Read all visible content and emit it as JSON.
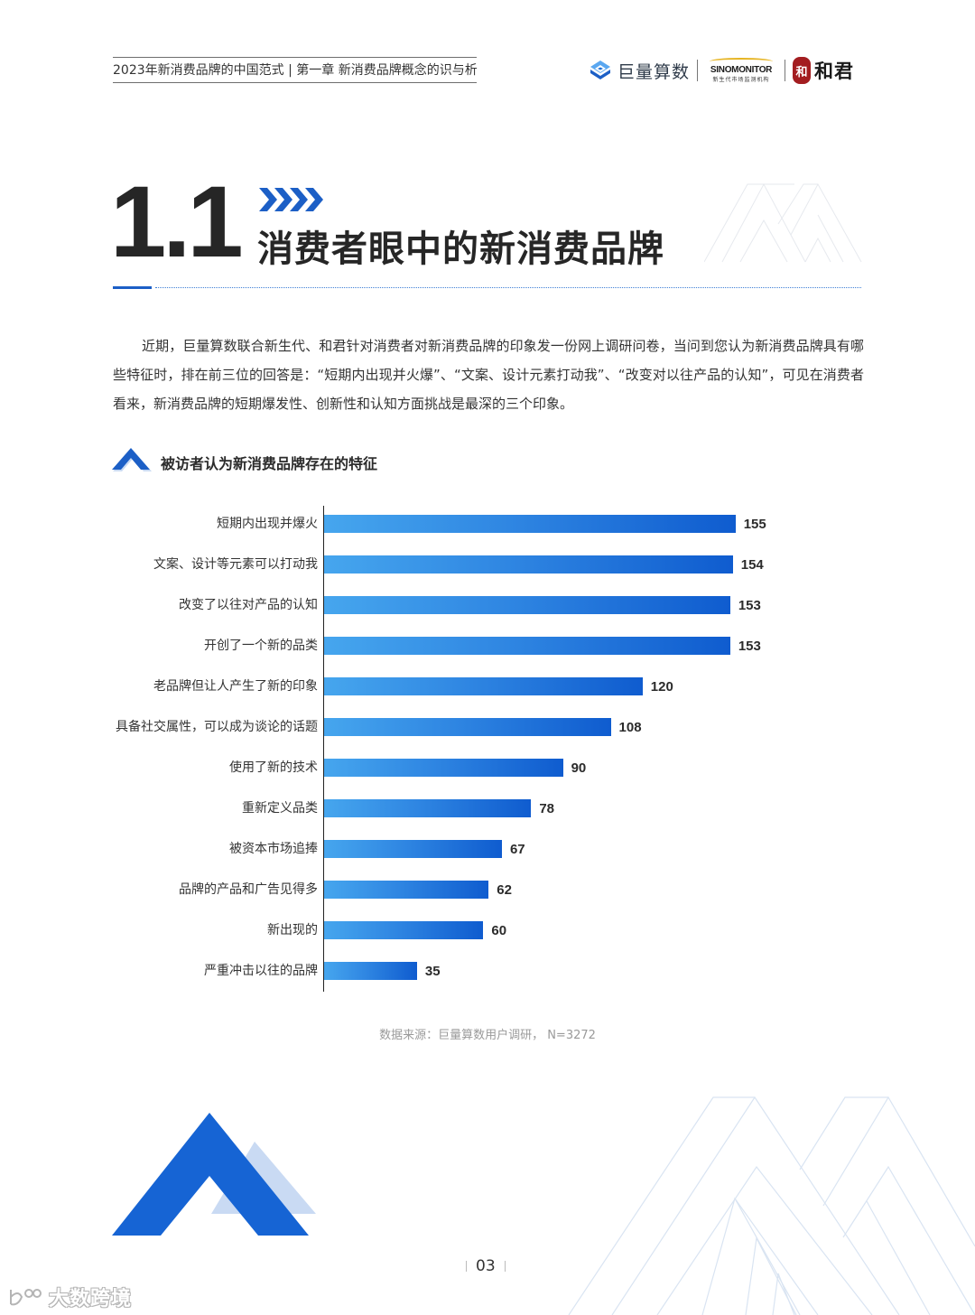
{
  "header": {
    "running_title": "2023年新消费品牌的中国范式 | 第一章 新消费品牌概念的识与析",
    "logos": {
      "juliang": "巨量算数",
      "sinomonitor": "SINOMONITOR",
      "sinomonitor_sub": "新生代市场监测机构",
      "hejun_seal": "和",
      "hejun": "和君"
    }
  },
  "section": {
    "number": "1.1",
    "title": "消费者眼中的新消费品牌"
  },
  "paragraph": "近期，巨量算数联合新生代、和君针对消费者对新消费品牌的印象发一份网上调研问卷，当问到您认为新消费品牌具有哪些特征时，排在前三位的回答是：“短期内出现并火爆”、“文案、设计元素打动我”、“改变对以往产品的认知”，可见在消费者看来，新消费品牌的短期爆发性、创新性和认知方面挑战是最深的三个印象。",
  "chart_title": "被访者认为新消费品牌存在的特征",
  "chart_data": {
    "type": "bar",
    "orientation": "horizontal",
    "title": "被访者认为新消费品牌存在的特征",
    "xlabel": "",
    "ylabel": "",
    "categories": [
      "短期内出现并爆火",
      "文案、设计等元素可以打动我",
      "改变了以往对产品的认知",
      "开创了一个新的品类",
      "老品牌但让人产生了新的印象",
      "具备社交属性，可以成为谈论的话题",
      "使用了新的技术",
      "重新定义品类",
      "被资本市场追捧",
      "品牌的产品和广告见得多",
      "新出现的",
      "严重冲击以往的品牌"
    ],
    "values": [
      155,
      154,
      153,
      153,
      120,
      108,
      90,
      78,
      67,
      62,
      60,
      35
    ],
    "xlim": [
      0,
      160
    ],
    "grid": false,
    "data_labels": true,
    "bar_color_start": "#46a6ee",
    "bar_color_end": "#0f5ccf",
    "source": "数据来源：巨量算数用户调研， N=3272"
  },
  "source": "数据来源：巨量算数用户调研， N=3272",
  "footer": {
    "page_number": "03",
    "watermark": "大数跨境"
  },
  "colors": {
    "accent": "#1c5fc6",
    "accent_light": "#c9daf3",
    "text": "#333333"
  }
}
